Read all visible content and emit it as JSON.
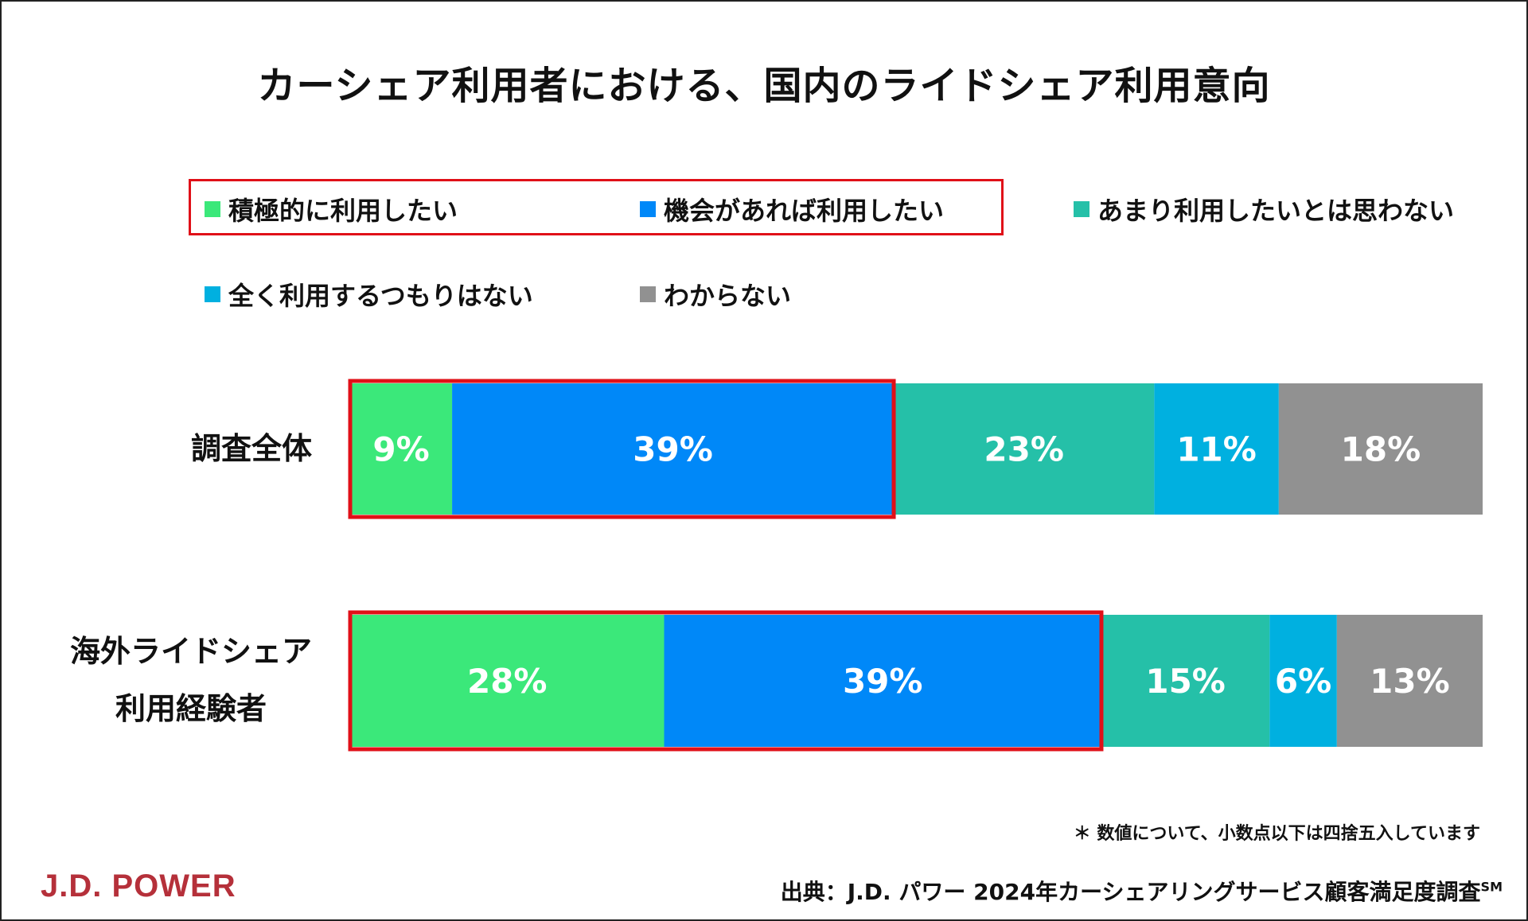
{
  "chart_data": {
    "type": "bar",
    "orientation": "horizontal",
    "stacked": true,
    "title": "カーシェア利用者における、国内のライドシェア利用意向",
    "categories": [
      "調査全体",
      "海外ライドシェア\n利用経験者"
    ],
    "category_lines": [
      [
        "調査全体"
      ],
      [
        "海外ライドシェア",
        "利用経験者"
      ]
    ],
    "series": [
      {
        "name": "積極的に利用したい",
        "color": "#3be87a",
        "values": [
          9,
          28
        ]
      },
      {
        "name": "機会があれば利用したい",
        "color": "#0088f8",
        "values": [
          39,
          39
        ]
      },
      {
        "name": "あまり利用したいとは思わない",
        "color": "#25c0a8",
        "values": [
          23,
          15
        ]
      },
      {
        "name": "全く利用するつもりはない",
        "color": "#00b0e0",
        "values": [
          11,
          6
        ]
      },
      {
        "name": "わからない",
        "color": "#919191",
        "values": [
          18,
          13
        ]
      }
    ],
    "unit": "%",
    "xlim": [
      0,
      100
    ],
    "grid": false,
    "legend_position": "top",
    "highlight_color": "#e01018",
    "highlighted_series": [
      0,
      1
    ]
  },
  "footnote": "＊ 数値について、小数点以下は四捨五入しています",
  "source": "出典：J.D. パワー 2024年カーシェアリングサービス顧客満足度調査",
  "source_mark": "SM",
  "logo": "J.D. POWER"
}
